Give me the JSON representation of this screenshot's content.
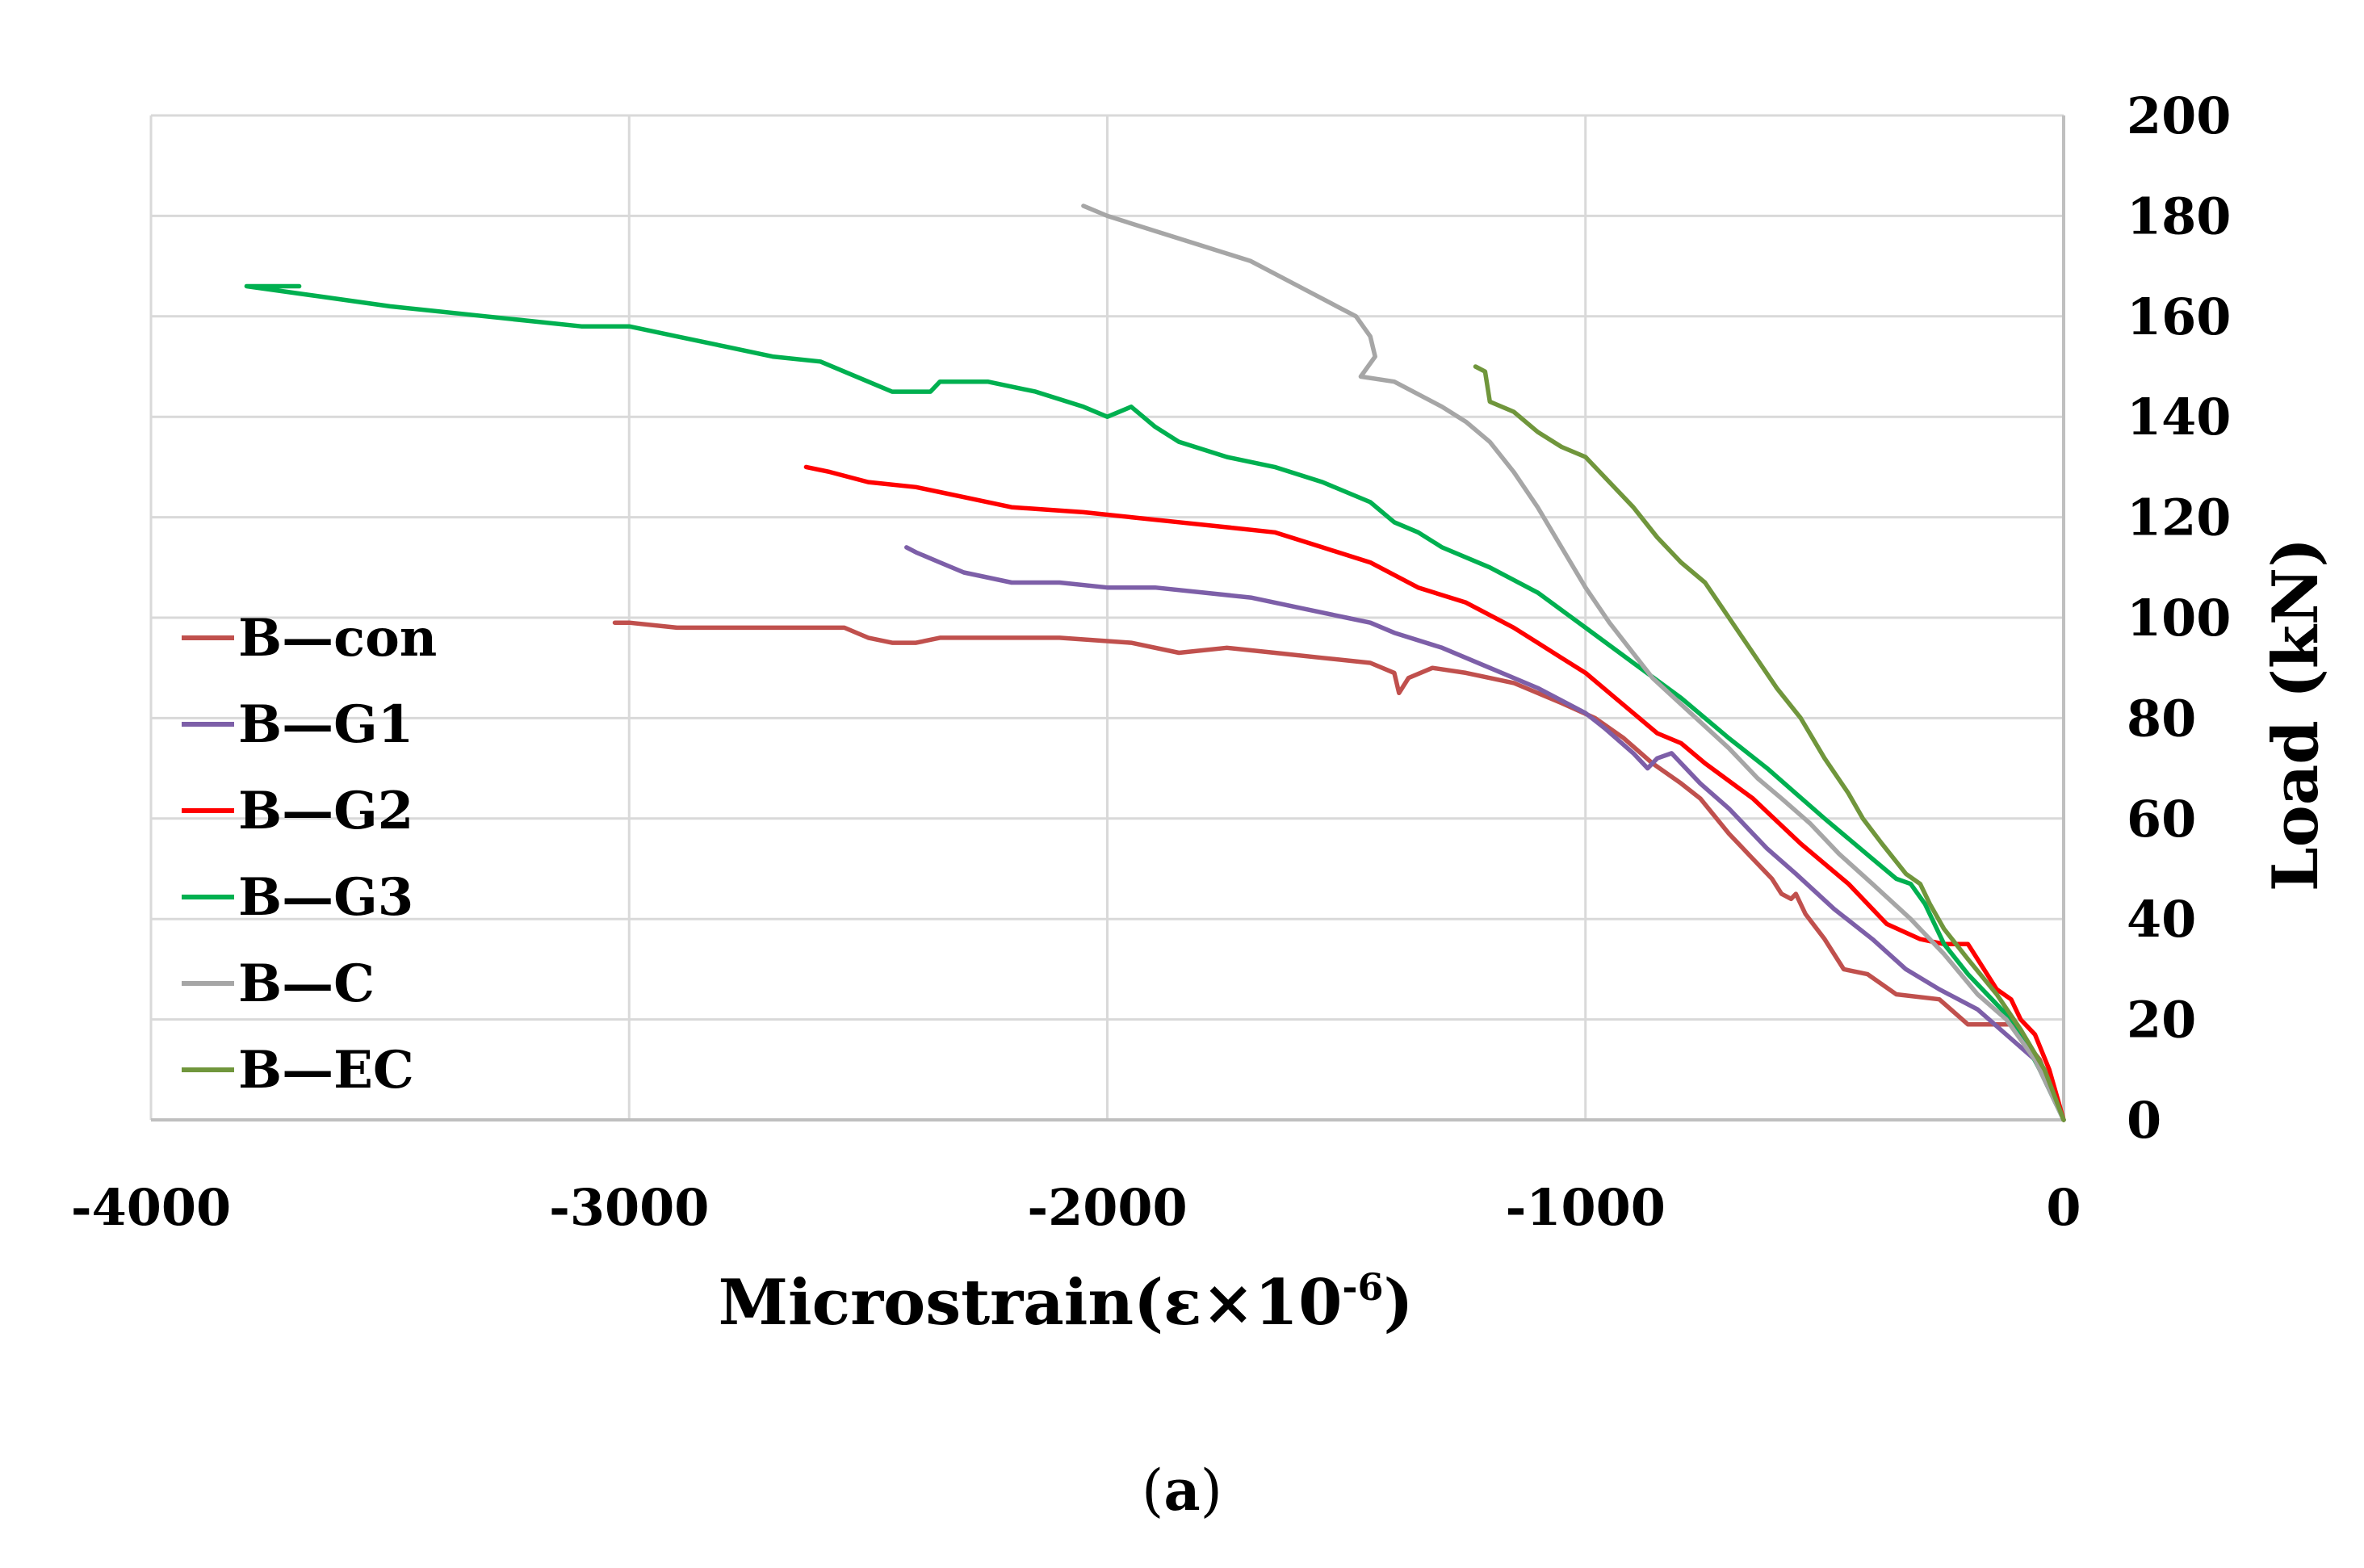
{
  "chart_data": {
    "type": "line",
    "title": "",
    "xlabel": "Microstrain(ε×10",
    "xlabel_sup": "-6",
    "xlabel_close": ")",
    "ylabel": "Load (kN)",
    "xlim": [
      -4000,
      0
    ],
    "ylim": [
      0,
      200
    ],
    "x_ticks": [
      -4000,
      -3000,
      -2000,
      -1000,
      0
    ],
    "y_ticks": [
      0,
      20,
      40,
      60,
      80,
      100,
      120,
      140,
      160,
      180,
      200
    ],
    "grid": true,
    "y_axis_side": "right",
    "legend_position": "left",
    "series": [
      {
        "name": "B—con",
        "color": "#c0504d",
        "points": [
          [
            0,
            0
          ],
          [
            -50,
            12
          ],
          [
            -110,
            19
          ],
          [
            -200,
            19
          ],
          [
            -260,
            24
          ],
          [
            -350,
            25
          ],
          [
            -410,
            29
          ],
          [
            -460,
            30
          ],
          [
            -500,
            36
          ],
          [
            -540,
            41
          ],
          [
            -560,
            45
          ],
          [
            -570,
            44
          ],
          [
            -590,
            45
          ],
          [
            -610,
            48
          ],
          [
            -650,
            52
          ],
          [
            -700,
            57
          ],
          [
            -760,
            64
          ],
          [
            -800,
            67
          ],
          [
            -860,
            71
          ],
          [
            -920,
            76
          ],
          [
            -980,
            80
          ],
          [
            -1050,
            83
          ],
          [
            -1150,
            87
          ],
          [
            -1250,
            89
          ],
          [
            -1320,
            90
          ],
          [
            -1370,
            88
          ],
          [
            -1390,
            85
          ],
          [
            -1400,
            89
          ],
          [
            -1450,
            91
          ],
          [
            -1550,
            92
          ],
          [
            -1650,
            93
          ],
          [
            -1750,
            94
          ],
          [
            -1850,
            93
          ],
          [
            -1950,
            95
          ],
          [
            -2100,
            96
          ],
          [
            -2150,
            96
          ],
          [
            -2250,
            96
          ],
          [
            -2350,
            96
          ],
          [
            -2400,
            95
          ],
          [
            -2450,
            95
          ],
          [
            -2500,
            96
          ],
          [
            -2550,
            98
          ],
          [
            -2600,
            98
          ],
          [
            -2700,
            98
          ],
          [
            -2800,
            98
          ],
          [
            -2900,
            98
          ],
          [
            -3000,
            99
          ],
          [
            -3030,
            99
          ]
        ]
      },
      {
        "name": "B—G1",
        "color": "#7d5fa8",
        "points": [
          [
            0,
            0
          ],
          [
            -60,
            12
          ],
          [
            -120,
            17
          ],
          [
            -180,
            22
          ],
          [
            -260,
            26
          ],
          [
            -330,
            30
          ],
          [
            -400,
            36
          ],
          [
            -480,
            42
          ],
          [
            -560,
            49
          ],
          [
            -620,
            54
          ],
          [
            -700,
            62
          ],
          [
            -760,
            67
          ],
          [
            -800,
            71
          ],
          [
            -820,
            73
          ],
          [
            -850,
            72
          ],
          [
            -870,
            70
          ],
          [
            -900,
            73
          ],
          [
            -960,
            78
          ],
          [
            -1000,
            81
          ],
          [
            -1100,
            86
          ],
          [
            -1200,
            90
          ],
          [
            -1300,
            94
          ],
          [
            -1400,
            97
          ],
          [
            -1450,
            99
          ],
          [
            -1500,
            100
          ],
          [
            -1600,
            102
          ],
          [
            -1700,
            104
          ],
          [
            -1800,
            105
          ],
          [
            -1900,
            106
          ],
          [
            -2000,
            106
          ],
          [
            -2100,
            107
          ],
          [
            -2200,
            107
          ],
          [
            -2300,
            109
          ],
          [
            -2350,
            111
          ],
          [
            -2400,
            113
          ],
          [
            -2420,
            114
          ]
        ]
      },
      {
        "name": "B—G2",
        "color": "#ff0000",
        "points": [
          [
            0,
            0
          ],
          [
            -30,
            10
          ],
          [
            -60,
            17
          ],
          [
            -90,
            20
          ],
          [
            -110,
            24
          ],
          [
            -140,
            26
          ],
          [
            -180,
            32
          ],
          [
            -200,
            35
          ],
          [
            -250,
            35
          ],
          [
            -300,
            36
          ],
          [
            -370,
            39
          ],
          [
            -450,
            47
          ],
          [
            -550,
            55
          ],
          [
            -650,
            64
          ],
          [
            -750,
            71
          ],
          [
            -800,
            75
          ],
          [
            -850,
            77
          ],
          [
            -900,
            81
          ],
          [
            -950,
            85
          ],
          [
            -1000,
            89
          ],
          [
            -1050,
            92
          ],
          [
            -1100,
            95
          ],
          [
            -1150,
            98
          ],
          [
            -1250,
            103
          ],
          [
            -1350,
            106
          ],
          [
            -1450,
            111
          ],
          [
            -1550,
            114
          ],
          [
            -1650,
            117
          ],
          [
            -1750,
            118
          ],
          [
            -1850,
            119
          ],
          [
            -1950,
            120
          ],
          [
            -2050,
            121
          ],
          [
            -2200,
            122
          ],
          [
            -2300,
            124
          ],
          [
            -2350,
            125
          ],
          [
            -2400,
            126
          ],
          [
            -2500,
            127
          ],
          [
            -2580,
            129
          ],
          [
            -2630,
            130
          ]
        ]
      },
      {
        "name": "B—G3",
        "color": "#00b050",
        "points": [
          [
            0,
            0
          ],
          [
            -50,
            10
          ],
          [
            -100,
            19
          ],
          [
            -150,
            24
          ],
          [
            -200,
            29
          ],
          [
            -250,
            35
          ],
          [
            -290,
            43
          ],
          [
            -320,
            47
          ],
          [
            -350,
            48
          ],
          [
            -400,
            52
          ],
          [
            -450,
            56
          ],
          [
            -500,
            60
          ],
          [
            -560,
            65
          ],
          [
            -620,
            70
          ],
          [
            -700,
            76
          ],
          [
            -800,
            84
          ],
          [
            -900,
            91
          ],
          [
            -1000,
            98
          ],
          [
            -1100,
            105
          ],
          [
            -1200,
            110
          ],
          [
            -1300,
            114
          ],
          [
            -1350,
            117
          ],
          [
            -1400,
            119
          ],
          [
            -1450,
            123
          ],
          [
            -1550,
            127
          ],
          [
            -1650,
            130
          ],
          [
            -1750,
            132
          ],
          [
            -1850,
            135
          ],
          [
            -1900,
            138
          ],
          [
            -1950,
            142
          ],
          [
            -2000,
            140
          ],
          [
            -2050,
            142
          ],
          [
            -2150,
            145
          ],
          [
            -2250,
            147
          ],
          [
            -2350,
            147
          ],
          [
            -2370,
            145
          ],
          [
            -2450,
            145
          ],
          [
            -2500,
            147
          ],
          [
            -2600,
            151
          ],
          [
            -2700,
            152
          ],
          [
            -2800,
            154
          ],
          [
            -2900,
            156
          ],
          [
            -3000,
            158
          ],
          [
            -3100,
            158
          ],
          [
            -3200,
            159
          ],
          [
            -3300,
            160
          ],
          [
            -3500,
            162
          ],
          [
            -3650,
            164
          ],
          [
            -3800,
            166
          ],
          [
            -3750,
            166
          ],
          [
            -3690,
            166
          ]
        ]
      },
      {
        "name": "B—C",
        "color": "#a6a6a6",
        "points": [
          [
            0,
            0
          ],
          [
            -60,
            12
          ],
          [
            -120,
            20
          ],
          [
            -180,
            25
          ],
          [
            -250,
            33
          ],
          [
            -320,
            40
          ],
          [
            -400,
            47
          ],
          [
            -470,
            53
          ],
          [
            -530,
            59
          ],
          [
            -590,
            64
          ],
          [
            -640,
            68
          ],
          [
            -700,
            74
          ],
          [
            -780,
            81
          ],
          [
            -860,
            88
          ],
          [
            -950,
            99
          ],
          [
            -1000,
            106
          ],
          [
            -1050,
            114
          ],
          [
            -1100,
            122
          ],
          [
            -1150,
            129
          ],
          [
            -1200,
            135
          ],
          [
            -1250,
            139
          ],
          [
            -1300,
            142
          ],
          [
            -1400,
            147
          ],
          [
            -1470,
            148
          ],
          [
            -1440,
            152
          ],
          [
            -1450,
            156
          ],
          [
            -1480,
            160
          ],
          [
            -1520,
            162
          ],
          [
            -1600,
            166
          ],
          [
            -1700,
            171
          ],
          [
            -1800,
            174
          ],
          [
            -1900,
            177
          ],
          [
            -2000,
            180
          ],
          [
            -2050,
            182
          ]
        ]
      },
      {
        "name": "B—EC",
        "color": "#70963c",
        "points": [
          [
            0,
            0
          ],
          [
            -40,
            10
          ],
          [
            -90,
            18
          ],
          [
            -140,
            25
          ],
          [
            -200,
            32
          ],
          [
            -250,
            38
          ],
          [
            -280,
            43
          ],
          [
            -300,
            47
          ],
          [
            -330,
            49
          ],
          [
            -380,
            55
          ],
          [
            -420,
            60
          ],
          [
            -450,
            65
          ],
          [
            -500,
            72
          ],
          [
            -550,
            80
          ],
          [
            -600,
            86
          ],
          [
            -650,
            93
          ],
          [
            -700,
            100
          ],
          [
            -750,
            107
          ],
          [
            -800,
            111
          ],
          [
            -850,
            116
          ],
          [
            -900,
            122
          ],
          [
            -950,
            127
          ],
          [
            -1000,
            132
          ],
          [
            -1050,
            134
          ],
          [
            -1100,
            137
          ],
          [
            -1150,
            141
          ],
          [
            -1200,
            143
          ],
          [
            -1210,
            149
          ],
          [
            -1230,
            150
          ]
        ]
      }
    ]
  },
  "caption": {
    "open": "(",
    "letter": "a",
    "close": ")"
  }
}
